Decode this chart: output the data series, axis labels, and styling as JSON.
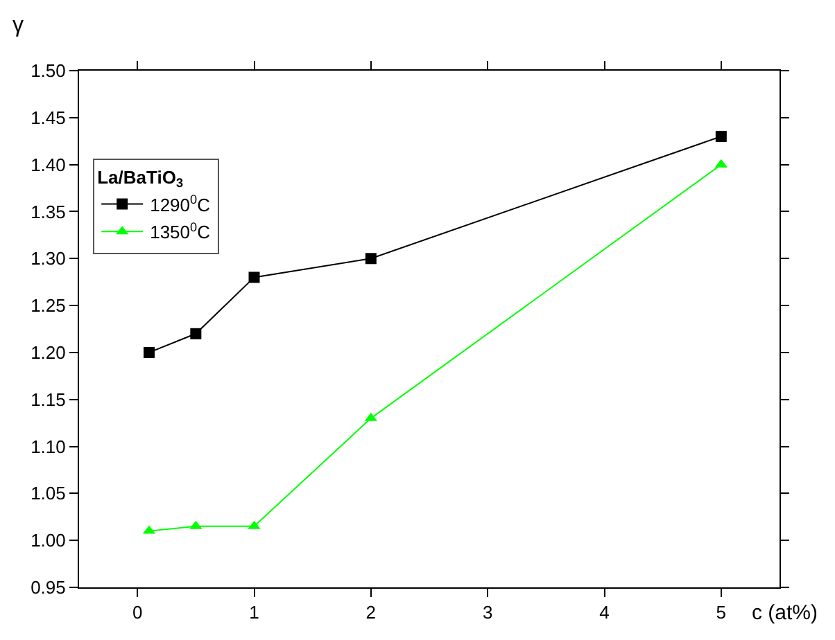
{
  "chart_data": {
    "type": "line",
    "xlabel": "c (at%)",
    "ylabel": "γ",
    "legend_title": "La/BaTiO$_{3}$",
    "x": [
      0.1,
      0.5,
      1,
      2,
      5
    ],
    "series": [
      {
        "name": "1290$^{0}$C",
        "color": "#000000",
        "marker": "square",
        "values": [
          1.2,
          1.22,
          1.28,
          1.3,
          1.43
        ]
      },
      {
        "name": "1350$^{0}$C",
        "color": "#00ff00",
        "marker": "triangle",
        "values": [
          1.01,
          1.015,
          1.015,
          1.13,
          1.4
        ]
      }
    ],
    "xlim": [
      -0.5,
      5.5
    ],
    "xticks": [
      0,
      1,
      2,
      3,
      4,
      5
    ],
    "ylim": [
      0.95,
      1.5
    ],
    "yticks": [
      {
        "value": 0.95,
        "label": "0.95"
      },
      {
        "value": 1.0,
        "label": "1.00"
      },
      {
        "value": 1.05,
        "label": "1.05"
      },
      {
        "value": 1.1,
        "label": "1.10"
      },
      {
        "value": 1.15,
        "label": "1.15"
      },
      {
        "value": 1.2,
        "label": "1.20"
      },
      {
        "value": 1.25,
        "label": "1.25"
      },
      {
        "value": 1.3,
        "label": "1.30"
      },
      {
        "value": 1.35,
        "label": "1.35"
      },
      {
        "value": 1.4,
        "label": "1.40"
      },
      {
        "value": 1.45,
        "label": "1.45"
      },
      {
        "value": 1.5,
        "label": "1.50"
      }
    ],
    "legend": "top left",
    "line_style": "solid"
  }
}
